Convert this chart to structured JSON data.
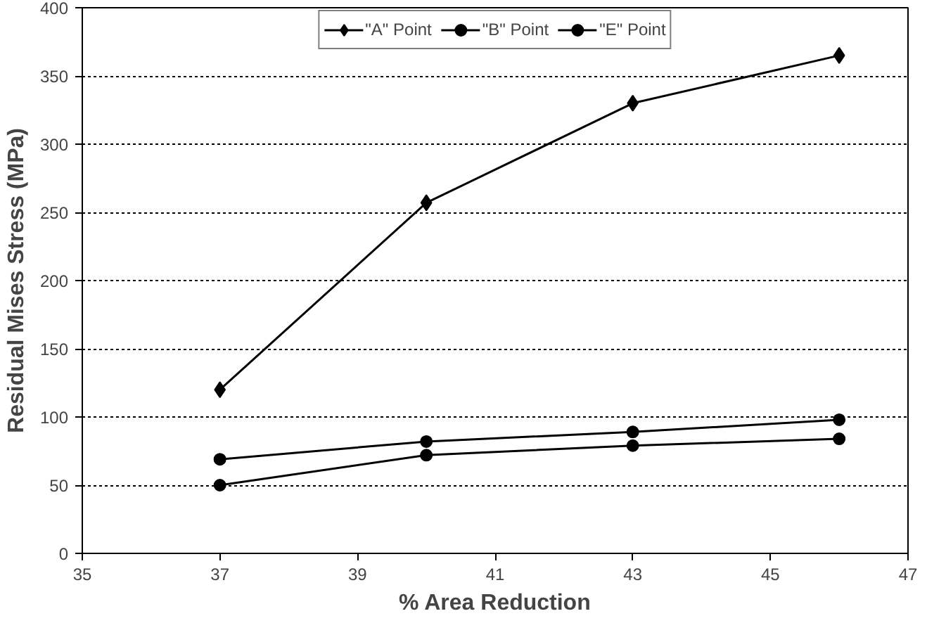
{
  "chart_data": {
    "type": "line",
    "xlabel": "% Area Reduction",
    "ylabel": "Residual Mises Stress (MPa)",
    "x": [
      37,
      40,
      43,
      46
    ],
    "series": [
      {
        "name": "\"A\" Point",
        "color": "#000000",
        "marker": "diamond",
        "values": [
          120,
          257,
          330,
          365
        ]
      },
      {
        "name": "\"B\" Point",
        "color": "#000000",
        "marker": "circle",
        "values": [
          50,
          72,
          79,
          84
        ]
      },
      {
        "name": "\"E\" Point",
        "color": "#000000",
        "marker": "circle",
        "values": [
          69,
          82,
          89,
          98
        ]
      }
    ],
    "xlim": [
      35,
      47
    ],
    "xticks": [
      35,
      37,
      39,
      41,
      43,
      45,
      47
    ],
    "ylim": [
      0,
      400
    ],
    "yticks": [
      0,
      50,
      100,
      150,
      200,
      250,
      300,
      350,
      400
    ],
    "grid": "y",
    "legend": "top",
    "line_style": "solid"
  }
}
